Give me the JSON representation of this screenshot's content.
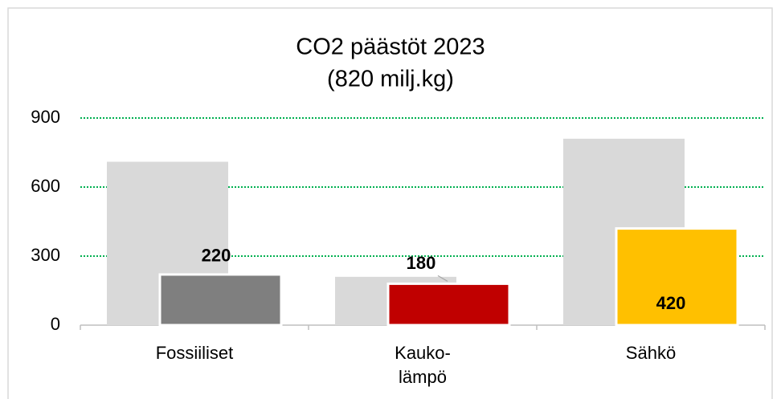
{
  "chart_data": {
    "type": "bar",
    "title": "CO2 päästöt 2023",
    "subtitle": "(820 milj.kg)",
    "categories": [
      "Fossiiliset",
      "Kauko-\nlämpö",
      "Sähkö"
    ],
    "series": [
      {
        "color": "#d9d9d9",
        "values": [
          710,
          210,
          810
        ]
      },
      {
        "colors": [
          "#7f7f7f",
          "#c00000",
          "#ffc000"
        ],
        "values": [
          220,
          180,
          420
        ]
      }
    ],
    "ylim": [
      0,
      900
    ],
    "yticks": [
      0,
      300,
      600,
      900
    ],
    "grid": true,
    "grid_color": "#00b050"
  }
}
